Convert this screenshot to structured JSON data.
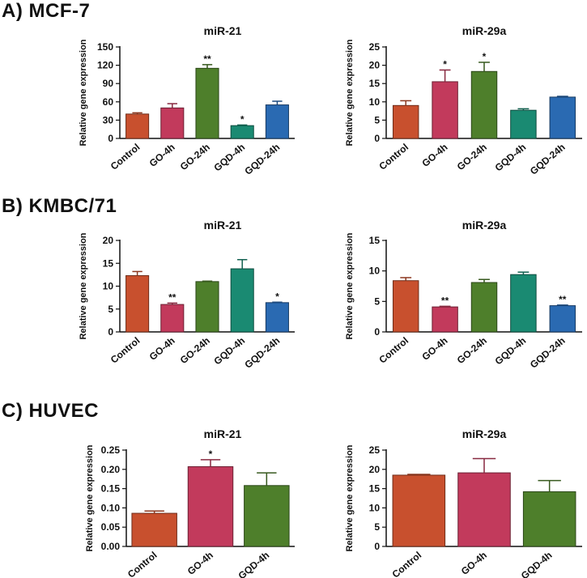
{
  "sections": [
    {
      "label": "A) MCF-7"
    },
    {
      "label": "B) KMBC/71"
    },
    {
      "label": "C) HUVEC"
    }
  ],
  "colors": {
    "control": "#c8502e",
    "go4h": "#c23a5c",
    "go24h": "#4e7f2b",
    "gqd4h": "#1a8a72",
    "gqd24h": "#2a6ab2"
  },
  "chart_data": [
    {
      "id": "mcf7-mir21",
      "type": "bar",
      "title": "miR-21",
      "ylabel": "Relative gene expression",
      "xlabel": "",
      "categories": [
        "Control",
        "GO-4h",
        "GO-24h",
        "GQD-4h",
        "GQD-24h"
      ],
      "colorKeys": [
        "control",
        "go4h",
        "go24h",
        "gqd4h",
        "gqd24h"
      ],
      "values": [
        40,
        50,
        115,
        21,
        55
      ],
      "errors": [
        2,
        7,
        6,
        1,
        6
      ],
      "significance": [
        "",
        "",
        "**",
        "*",
        ""
      ],
      "ylim": [
        0,
        150
      ],
      "yticks": [
        "0",
        "30",
        "60",
        "90",
        "120",
        "150"
      ],
      "grid": false
    },
    {
      "id": "mcf7-mir29a",
      "type": "bar",
      "title": "miR-29a",
      "ylabel": "Relative gene expression",
      "xlabel": "",
      "categories": [
        "Control",
        "GO-4h",
        "GO-24h",
        "GQD-4h",
        "GQD-24h"
      ],
      "colorKeys": [
        "control",
        "go4h",
        "go24h",
        "gqd4h",
        "gqd24h"
      ],
      "values": [
        9,
        15.5,
        18.3,
        7.7,
        11.3
      ],
      "errors": [
        1.3,
        3.2,
        2.5,
        0.4,
        0.2
      ],
      "significance": [
        "",
        "*",
        "*",
        "",
        ""
      ],
      "ylim": [
        0,
        25
      ],
      "yticks": [
        "0",
        "5",
        "10",
        "15",
        "20",
        "25"
      ],
      "grid": false
    },
    {
      "id": "kmbc-mir21",
      "type": "bar",
      "title": "miR-21",
      "ylabel": "Relative gene expression",
      "xlabel": "",
      "categories": [
        "Control",
        "GO-4h",
        "GO-24h",
        "GQD-4h",
        "GQD-24h"
      ],
      "colorKeys": [
        "control",
        "go4h",
        "go24h",
        "gqd4h",
        "gqd24h"
      ],
      "values": [
        12.3,
        6,
        11,
        13.8,
        6.4
      ],
      "errors": [
        0.9,
        0.3,
        0.1,
        2,
        0.1
      ],
      "significance": [
        "",
        "**",
        "",
        "",
        "*"
      ],
      "ylim": [
        0,
        20
      ],
      "yticks": [
        "0",
        "5",
        "10",
        "15",
        "20"
      ],
      "grid": false
    },
    {
      "id": "kmbc-mir29a",
      "type": "bar",
      "title": "miR-29a",
      "ylabel": "Relative gene expression",
      "xlabel": "",
      "categories": [
        "Control",
        "GO-4h",
        "GO-24h",
        "GQD-4h",
        "GQD-24h"
      ],
      "colorKeys": [
        "control",
        "go4h",
        "go24h",
        "gqd4h",
        "gqd24h"
      ],
      "values": [
        8.4,
        4.1,
        8.1,
        9.4,
        4.3
      ],
      "errors": [
        0.5,
        0.1,
        0.5,
        0.4,
        0.1
      ],
      "significance": [
        "",
        "**",
        "",
        "",
        "**"
      ],
      "ylim": [
        0,
        15
      ],
      "yticks": [
        "0",
        "5",
        "10",
        "15"
      ],
      "grid": false
    },
    {
      "id": "huvec-mir21",
      "type": "bar",
      "title": "miR-21",
      "ylabel": "Relative gene expression",
      "xlabel": "",
      "categories": [
        "Control",
        "GO-4h",
        "GQD-4h"
      ],
      "colorKeys": [
        "control",
        "go4h",
        "go24h"
      ],
      "values": [
        0.086,
        0.207,
        0.158
      ],
      "errors": [
        0.006,
        0.018,
        0.033
      ],
      "significance": [
        "",
        "*",
        ""
      ],
      "ylim": [
        0,
        0.25
      ],
      "yticks": [
        "0.00",
        "0.05",
        "0.10",
        "0.15",
        "0.20",
        "0.25"
      ],
      "grid": false
    },
    {
      "id": "huvec-mir29a",
      "type": "bar",
      "title": "miR-29a",
      "ylabel": "Relative gene expression",
      "xlabel": "",
      "categories": [
        "Control",
        "GO-4h",
        "GQD-4h"
      ],
      "colorKeys": [
        "control",
        "go4h",
        "go24h"
      ],
      "values": [
        18.5,
        19.1,
        14.2
      ],
      "errors": [
        0.2,
        3.7,
        2.9
      ],
      "significance": [
        "",
        "",
        ""
      ],
      "ylim": [
        0,
        25
      ],
      "yticks": [
        "0",
        "5",
        "10",
        "15",
        "20",
        "25"
      ],
      "grid": false
    }
  ]
}
